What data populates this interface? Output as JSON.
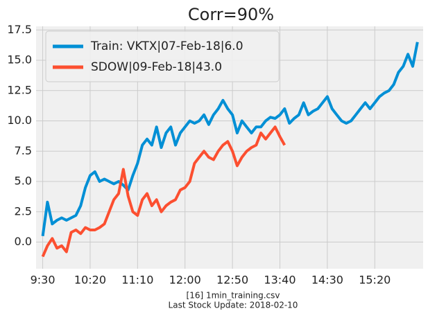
{
  "chart_data": {
    "type": "line",
    "title": "Corr=90%",
    "footer": [
      "[16] 1min_training.csv",
      "Last Stock Update: 2018-02-10"
    ],
    "x": [
      570,
      575,
      580,
      585,
      590,
      595,
      600,
      605,
      610,
      615,
      620,
      625,
      630,
      635,
      640,
      645,
      650,
      655,
      660,
      665,
      670,
      675,
      680,
      685,
      690,
      695,
      700,
      705,
      710,
      715,
      720,
      725,
      730,
      735,
      740,
      745,
      750,
      755,
      760,
      765,
      770,
      775,
      780,
      785,
      790,
      795,
      800,
      805,
      810,
      815,
      820,
      825,
      830,
      835,
      840,
      845,
      850,
      855,
      860,
      865,
      870,
      875,
      880,
      885,
      890,
      895,
      900,
      905,
      910,
      915,
      920,
      925,
      930,
      935,
      940,
      945,
      950,
      955,
      960,
      965
    ],
    "xlim": [
      563,
      971
    ],
    "xticks": [
      {
        "value": 570,
        "label": "9:30"
      },
      {
        "value": 620,
        "label": "10:20"
      },
      {
        "value": 670,
        "label": "11:10"
      },
      {
        "value": 720,
        "label": "12:00"
      },
      {
        "value": 770,
        "label": "12:50"
      },
      {
        "value": 820,
        "label": "13:40"
      },
      {
        "value": 870,
        "label": "14:30"
      },
      {
        "value": 920,
        "label": "15:20"
      }
    ],
    "ylim": [
      -2.2,
      17.8
    ],
    "yticks": [
      {
        "value": 0,
        "label": "0.0"
      },
      2.5,
      {
        "value": 5,
        "label": "5.0"
      },
      7.5,
      {
        "value": 10,
        "label": "10.0"
      },
      12.5,
      {
        "value": 15,
        "label": "15.0"
      },
      17.5
    ],
    "grid": true,
    "legend": "upper left",
    "series": [
      {
        "name": "Train: VKTX|07-Feb-18|6.0",
        "color": "#008fd5",
        "values": [
          0.5,
          3.3,
          1.5,
          1.8,
          2.0,
          1.8,
          2.0,
          2.2,
          3.0,
          4.5,
          5.5,
          5.8,
          5.0,
          5.2,
          5.0,
          4.8,
          5.0,
          4.7,
          4.3,
          5.5,
          6.5,
          8.0,
          8.5,
          8.0,
          9.5,
          7.8,
          9.0,
          9.5,
          8.0,
          9.0,
          9.5,
          10.0,
          9.8,
          10.0,
          10.5,
          9.7,
          10.5,
          11.0,
          11.7,
          11.0,
          10.5,
          9.0,
          10.0,
          9.5,
          9.0,
          9.5,
          9.5,
          10.0,
          10.3,
          10.2,
          10.5,
          11.0,
          9.8,
          10.2,
          10.5,
          11.5,
          10.5,
          10.8,
          11.0,
          11.5,
          12.0,
          11.0,
          10.5,
          10.0,
          9.8,
          10.0,
          10.5,
          11.0,
          11.5,
          11.0,
          11.5,
          12.0,
          12.3,
          12.5,
          13.0,
          14.0,
          14.5,
          15.5,
          14.5,
          16.5
        ]
      },
      {
        "name": "SDOW|09-Feb-18|43.0",
        "color": "#fc4f30",
        "values": [
          -1.2,
          -0.3,
          0.3,
          -0.5,
          -0.3,
          -0.8,
          0.8,
          1.0,
          0.7,
          1.2,
          1.0,
          1.0,
          1.2,
          1.5,
          2.5,
          3.5,
          4.0,
          6.0,
          3.8,
          2.5,
          2.2,
          3.5,
          4.0,
          3.0,
          3.5,
          2.5,
          3.0,
          3.3,
          3.5,
          4.3,
          4.5,
          5.0,
          6.5,
          7.0,
          7.5,
          7.0,
          6.8,
          7.5,
          8.0,
          8.3,
          7.5,
          6.3,
          7.0,
          7.5,
          7.8,
          8.0,
          9.0,
          8.5,
          9.0,
          9.5,
          8.7,
          8.0,
          null,
          null,
          null,
          null,
          null,
          null,
          null,
          null,
          null,
          null,
          null,
          null,
          null,
          null,
          null,
          null,
          null,
          null,
          null,
          null,
          null,
          null,
          null,
          null,
          null,
          null,
          null,
          null
        ]
      }
    ]
  }
}
